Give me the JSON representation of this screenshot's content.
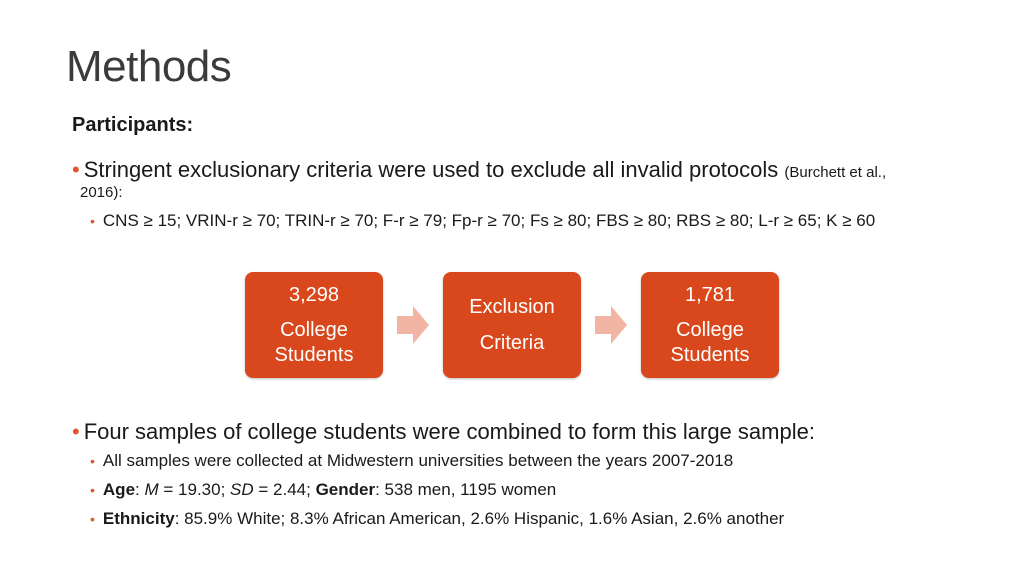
{
  "title": "Methods",
  "participants_heading": "Participants:",
  "bullet1": {
    "text": "Stringent exclusionary criteria were used to exclude all invalid protocols",
    "citation": "(Burchett et al.,",
    "citation_cont": "2016):",
    "sub": "CNS ≥ 15; VRIN-r ≥ 70; TRIN-r ≥ 70; F-r ≥ 79; Fp-r ≥ 70; Fs ≥ 80; FBS ≥ 80; RBS ≥ 80; L-r ≥ 65; K ≥ 60"
  },
  "flow": {
    "box1": {
      "number": "3,298",
      "label1": "College",
      "label2": "Students"
    },
    "box2": {
      "label1": "Exclusion",
      "label2": "Criteria"
    },
    "box3": {
      "number": "1,781",
      "label1": "College",
      "label2": "Students"
    },
    "box_color": "#d9481c",
    "arrow_color": "#f2b5a3"
  },
  "bullet2": {
    "text": "Four samples of college students were combined to form this large sample:",
    "sub1": "All samples were collected at Midwestern universities between the years 2007-2018",
    "sub2": {
      "age_label": "Age",
      "m_label": "M",
      "m_value": " = 19.30; ",
      "sd_label": "SD",
      "sd_value": " = 2.44; ",
      "gender_label": "Gender",
      "gender_value": ": 538 men, 1195 women"
    },
    "sub3": {
      "ethnicity_label": "Ethnicity",
      "ethnicity_value": ": 85.9% White;  8.3% African American, 2.6% Hispanic, 1.6% Asian, 2.6% another"
    }
  },
  "bullet_glyph": "•",
  "accent_color": "#e0582a"
}
